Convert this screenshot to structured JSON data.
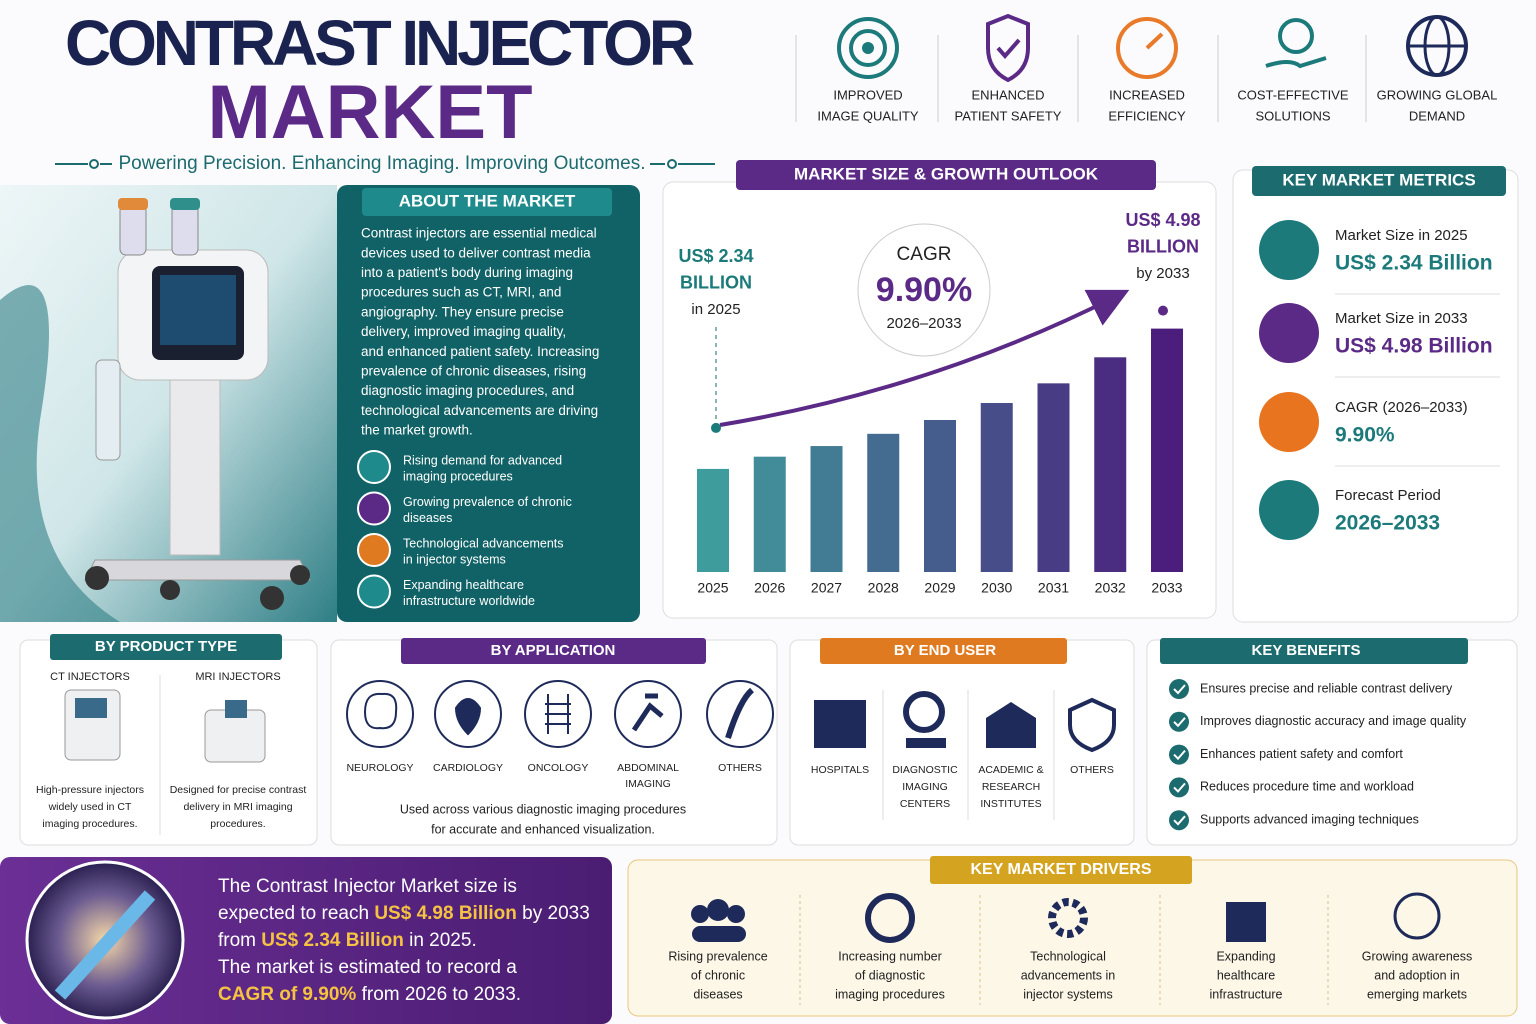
{
  "header": {
    "title_line1": "CONTRAST INJECTOR",
    "title_line2": "MARKET",
    "tagline": "Powering Precision. Enhancing Imaging. Improving Outcomes."
  },
  "highlights": [
    [
      "IMPROVED",
      "IMAGE QUALITY"
    ],
    [
      "ENHANCED",
      "PATIENT SAFETY"
    ],
    [
      "INCREASED",
      "EFFICIENCY"
    ],
    [
      "COST-EFFECTIVE",
      "SOLUTIONS"
    ],
    [
      "GROWING GLOBAL",
      "DEMAND"
    ]
  ],
  "about": {
    "title": "ABOUT THE MARKET",
    "text": [
      "Contrast injectors are essential medical",
      "devices used to deliver contrast media",
      "into a patient's body during imaging",
      "procedures such as CT, MRI, and",
      "angiography. They ensure precise",
      "delivery, improved imaging quality,",
      "and enhanced patient safety. Increasing",
      "prevalence of chronic diseases, rising",
      "diagnostic imaging procedures, and",
      "technological advancements are driving",
      "the market growth."
    ],
    "points": [
      [
        "Rising demand for advanced",
        "imaging procedures"
      ],
      [
        "Growing prevalence of chronic",
        "diseases"
      ],
      [
        "Technological advancements",
        "in injector systems"
      ],
      [
        "Expanding healthcare",
        "infrastructure worldwide"
      ]
    ]
  },
  "chart_data": {
    "type": "bar",
    "title": "MARKET SIZE & GROWTH OUTLOOK",
    "categories": [
      "2025",
      "2026",
      "2027",
      "2028",
      "2029",
      "2030",
      "2031",
      "2032",
      "2033"
    ],
    "values": [
      2.34,
      2.57,
      2.77,
      3.0,
      3.26,
      3.58,
      3.95,
      4.44,
      4.98
    ],
    "ylim": [
      0.4,
      7.4
    ],
    "color_start": "#3f9c9c",
    "color_end": "#4b1d7c",
    "annotations": [
      [
        "US$ 2.34",
        "BILLION",
        "in 2025"
      ],
      [
        "US$ 4.98",
        "BILLION",
        "by 2033"
      ]
    ],
    "cagr": [
      "CAGR",
      "9.90%",
      "2026–2033"
    ]
  },
  "key_metrics": {
    "title": "KEY MARKET METRICS",
    "items": [
      [
        "Market Size in 2025",
        "US$ 2.34 Billion"
      ],
      [
        "Market Size in 2033",
        "US$ 4.98 Billion"
      ],
      [
        "CAGR (2026–2033)",
        "9.90%"
      ],
      [
        "Forecast Period",
        "2026–2033"
      ]
    ]
  },
  "product_type": {
    "title": "BY PRODUCT TYPE",
    "items": [
      {
        "name": "CT INJECTORS",
        "desc": [
          "High-pressure injectors",
          "widely used in CT",
          "imaging procedures."
        ]
      },
      {
        "name": "MRI INJECTORS",
        "desc": [
          "Designed for precise contrast",
          "delivery in MRI imaging",
          "procedures."
        ]
      }
    ]
  },
  "application": {
    "title": "BY APPLICATION",
    "items": [
      [
        "NEUROLOGY"
      ],
      [
        "CARDIOLOGY"
      ],
      [
        "ONCOLOGY"
      ],
      [
        "ABDOMINAL",
        "IMAGING"
      ],
      [
        "OTHERS"
      ]
    ],
    "note": [
      "Used across various diagnostic imaging procedures",
      "for accurate and enhanced visualization."
    ]
  },
  "end_user": {
    "title": "BY END USER",
    "items": [
      [
        "HOSPITALS"
      ],
      [
        "DIAGNOSTIC",
        "IMAGING",
        "CENTERS"
      ],
      [
        "ACADEMIC &",
        "RESEARCH",
        "INSTITUTES"
      ],
      [
        "OTHERS"
      ]
    ]
  },
  "benefits": {
    "title": "KEY BENEFITS",
    "items": [
      "Ensures precise and reliable contrast delivery",
      "Improves diagnostic accuracy and image quality",
      "Enhances patient safety and comfort",
      "Reduces procedure time and workload",
      "Supports advanced imaging techniques"
    ]
  },
  "summary": {
    "lines": [
      [
        "The Contrast Injector Market size is"
      ],
      [
        "expected to reach ",
        "US$ 4.98 Billion",
        " by 2033"
      ],
      [
        "from ",
        "US$ 2.34 Billion",
        " in 2025."
      ],
      [
        "The market is estimated to record a"
      ],
      [
        "",
        "CAGR of 9.90%",
        " from 2026 to 2033."
      ]
    ]
  },
  "drivers": {
    "title": "KEY MARKET DRIVERS",
    "items": [
      [
        "Rising prevalence",
        "of chronic",
        "diseases"
      ],
      [
        "Increasing number",
        "of diagnostic",
        "imaging procedures"
      ],
      [
        "Technological",
        "advancements in",
        "injector systems"
      ],
      [
        "Expanding",
        "healthcare",
        "infrastructure"
      ],
      [
        "Growing awareness",
        "and adoption in",
        "emerging markets"
      ]
    ]
  }
}
